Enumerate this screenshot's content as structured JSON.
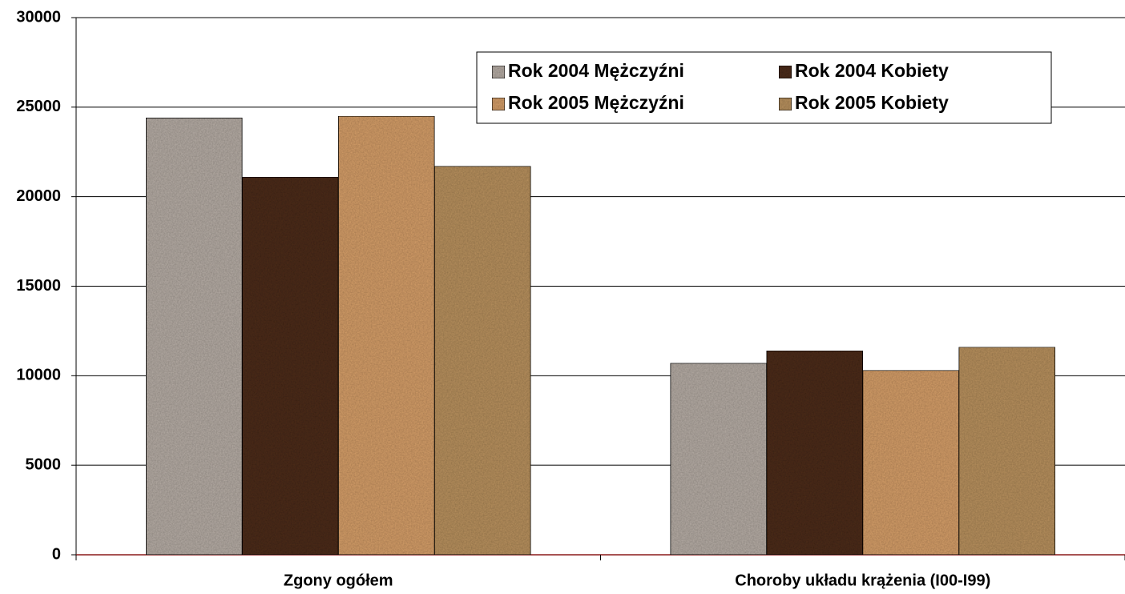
{
  "chart_data": {
    "type": "bar",
    "categories": [
      "Zgony ogółem",
      "Choroby układu krążenia (I00-I99)"
    ],
    "series": [
      {
        "name": "Rok 2004 Mężczyźni",
        "color": "#b5aca4",
        "values": [
          24400,
          10700
        ]
      },
      {
        "name": "Rok 2004 Kobiety",
        "color": "#4e2d1c",
        "values": [
          21100,
          11400
        ]
      },
      {
        "name": "Rok 2005 Mężczyźni",
        "color": "#d49e69",
        "values": [
          24500,
          10300
        ]
      },
      {
        "name": "Rok 2005 Kobiety",
        "color": "#b8915f",
        "values": [
          21700,
          11600
        ]
      }
    ],
    "ylim": [
      0,
      30000
    ],
    "yticks": [
      0,
      5000,
      10000,
      15000,
      20000,
      25000,
      30000
    ],
    "grid": true,
    "legend": "top"
  }
}
